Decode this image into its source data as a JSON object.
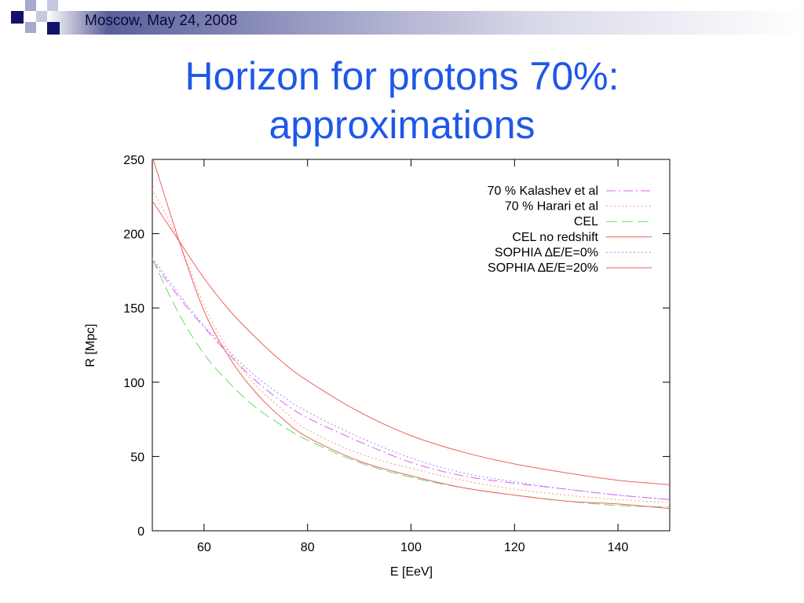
{
  "header": {
    "text": "Moscow, May 24, 2008"
  },
  "slide": {
    "title_line1": "Horizon for protons 70%:",
    "title_line2": "approximations"
  },
  "colors": {
    "title": "#1f57e8",
    "header_squares_dark": "#12126b",
    "header_squares_light": "#a6a8cc"
  },
  "chart_data": {
    "type": "line",
    "xlabel": "E [EeV]",
    "ylabel": "R [Mpc]",
    "xlim": [
      50,
      150
    ],
    "ylim": [
      0,
      250
    ],
    "xticks": [
      60,
      80,
      100,
      120,
      140
    ],
    "yticks": [
      0,
      50,
      100,
      150,
      200,
      250
    ],
    "legend_position": "top-right",
    "grid": false,
    "series": [
      {
        "name": "70 % Kalashev et al",
        "color": "#e65cf0",
        "dash": "12,4,2,4",
        "x": [
          50,
          55,
          60,
          65,
          70,
          75,
          80,
          90,
          100,
          110,
          120,
          130,
          140,
          150
        ],
        "y": [
          182,
          158,
          137,
          118,
          101,
          87,
          76,
          60,
          46,
          37,
          32,
          28,
          24,
          21
        ]
      },
      {
        "name": "70 % Harari et al",
        "color": "#f0a070",
        "dash": "2,3",
        "x": [
          50,
          55,
          60,
          65,
          70,
          75,
          80,
          90,
          100,
          110,
          120,
          130,
          140,
          150
        ],
        "y": [
          230,
          196,
          152,
          120,
          98,
          82,
          68,
          52,
          42,
          34,
          28,
          24,
          21,
          19
        ]
      },
      {
        "name": "CEL",
        "color": "#66dd66",
        "dash": "14,6",
        "x": [
          50,
          55,
          60,
          65,
          70,
          75,
          80,
          90,
          100,
          110,
          120,
          130,
          140,
          150
        ],
        "y": [
          183,
          147,
          119,
          99,
          83,
          71,
          61,
          46,
          36,
          29,
          24,
          20,
          17,
          16
        ]
      },
      {
        "name": "CEL no redshift",
        "color": "#f06060",
        "dash": "",
        "x": [
          50,
          55,
          60,
          65,
          70,
          75,
          80,
          90,
          100,
          110,
          120,
          130,
          140,
          150
        ],
        "y": [
          222,
          196,
          170,
          148,
          130,
          114,
          101,
          80,
          64,
          53,
          45,
          39,
          34,
          31
        ]
      },
      {
        "name": "SOPHIA ∆E/E=0%",
        "color": "#9a8cf5",
        "dash": "2,3",
        "x": [
          50,
          55,
          60,
          65,
          70,
          75,
          80,
          90,
          100,
          110,
          120,
          130,
          140,
          150
        ],
        "y": [
          184,
          160,
          138,
          120,
          104,
          91,
          80,
          63,
          49,
          39,
          33,
          28,
          24,
          21
        ]
      },
      {
        "name": "SOPHIA  ∆E/E=20%",
        "color": "#f06060",
        "dash": "",
        "x": [
          50,
          55,
          60,
          65,
          70,
          75,
          80,
          90,
          100,
          110,
          120,
          130,
          140,
          150
        ],
        "y": [
          252,
          197,
          148,
          116,
          93,
          76,
          63,
          47,
          37,
          29,
          24,
          20,
          18,
          15
        ]
      }
    ]
  }
}
